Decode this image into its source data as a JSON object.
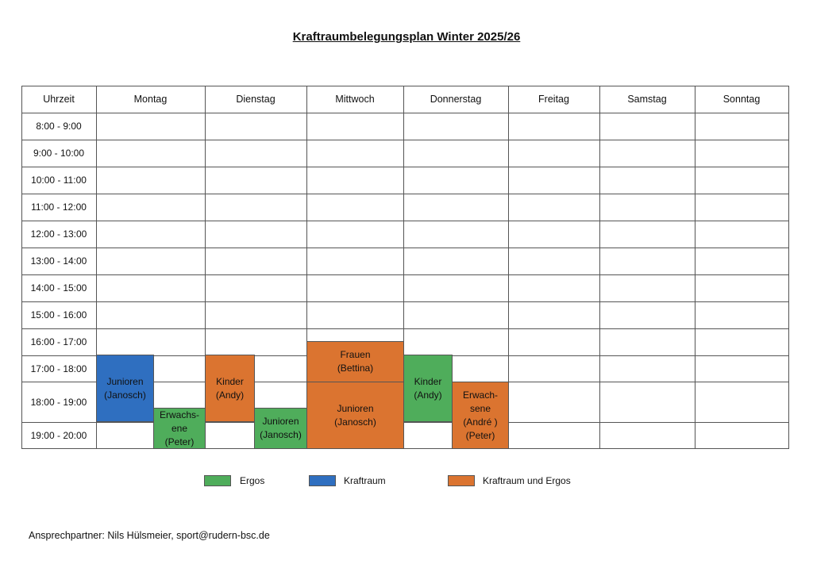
{
  "title": "Kraftraumbelegungsplan Winter 2025/26",
  "header": {
    "time": "Uhrzeit",
    "days": [
      "Montag",
      "Dienstag",
      "Mittwoch",
      "Donnerstag",
      "Freitag",
      "Samstag",
      "Sonntag"
    ]
  },
  "times": [
    "8:00 - 9:00",
    "9:00 - 10:00",
    "10:00 - 11:00",
    "11:00 - 12:00",
    "12:00 - 13:00",
    "13:00 - 14:00",
    "14:00 - 15:00",
    "15:00 - 16:00",
    "16:00 - 17:00",
    "17:00 - 18:00",
    "18:00 - 19:00",
    "19:00 - 20:00"
  ],
  "bookings": [
    {
      "day": "Montag",
      "label": "Junioren\n(Janosch)",
      "category": "Kraftraum",
      "color": "#2f6fc0"
    },
    {
      "day": "Montag",
      "label": "Erwachs-\nene\n(Peter)",
      "category": "Ergos",
      "color": "#4fad5b"
    },
    {
      "day": "Dienstag",
      "label": "Kinder\n(Andy)",
      "category": "Kraftraum und Ergos",
      "color": "#db7430"
    },
    {
      "day": "Dienstag",
      "label": "Junioren\n(Janosch)",
      "category": "Ergos",
      "color": "#4fad5b"
    },
    {
      "day": "Mittwoch",
      "label": "Frauen\n(Bettina)",
      "category": "Kraftraum und Ergos",
      "color": "#db7430"
    },
    {
      "day": "Mittwoch",
      "label": "Junioren\n(Janosch)",
      "category": "Kraftraum und Ergos",
      "color": "#db7430"
    },
    {
      "day": "Donnerstag",
      "label": "Kinder\n(Andy)",
      "category": "Ergos",
      "color": "#4fad5b"
    },
    {
      "day": "Donnerstag",
      "label": "Erwach-\nsene\n(André )\n(Peter)",
      "category": "Kraftraum und Ergos",
      "color": "#db7430"
    }
  ],
  "legend": [
    {
      "label": "Ergos",
      "color": "#4fad5b"
    },
    {
      "label": "Kraftraum",
      "color": "#2f6fc0"
    },
    {
      "label": "Kraftraum und Ergos",
      "color": "#db7430"
    }
  ],
  "contact": "Ansprechpartner: Nils Hülsmeier, sport@rudern-bsc.de"
}
